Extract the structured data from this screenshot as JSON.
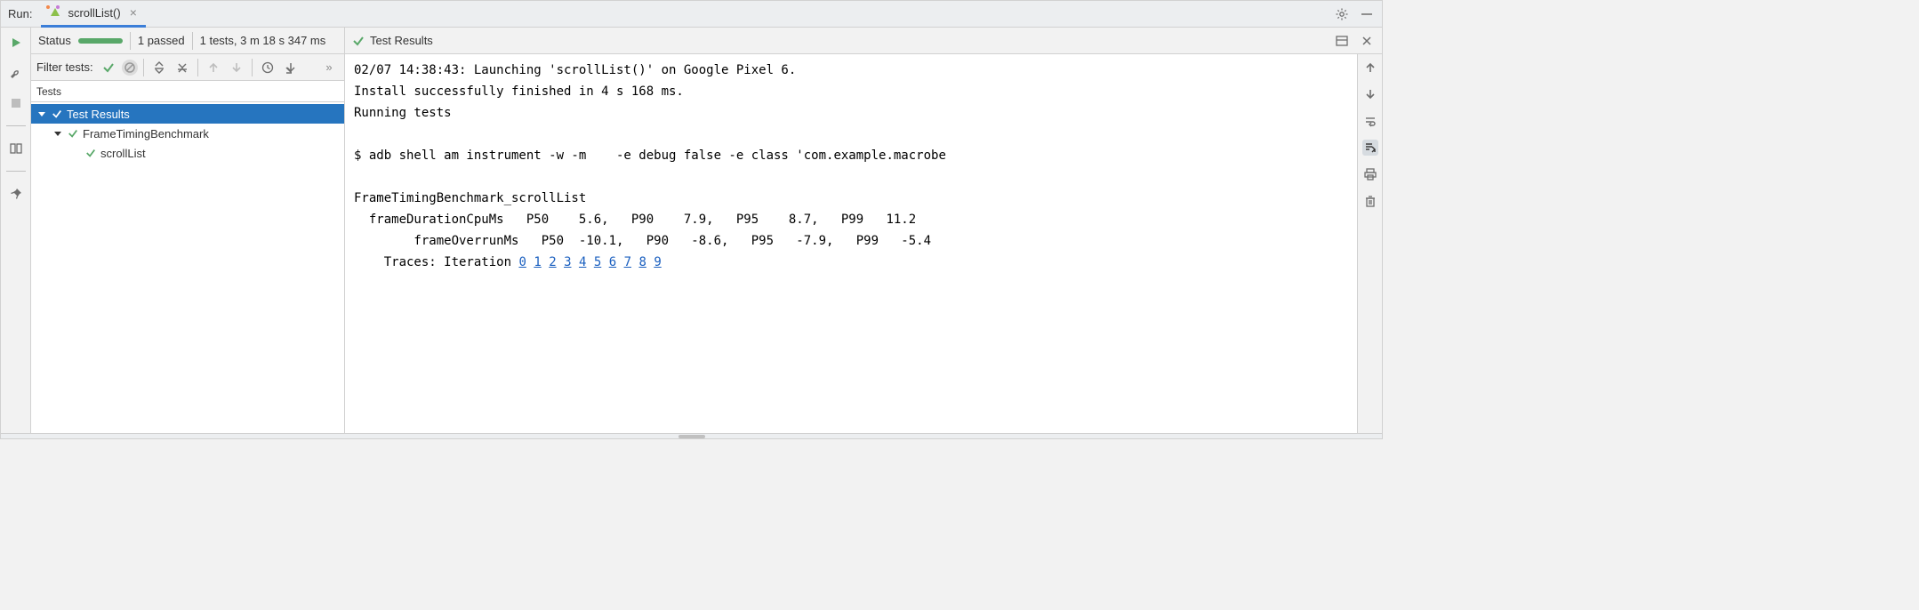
{
  "header": {
    "run_label": "Run:",
    "tab_title": "scrollList()"
  },
  "status": {
    "label": "Status",
    "passed_text": "1 passed",
    "summary": "1 tests, 3 m 18 s 347 ms"
  },
  "filter": {
    "label": "Filter tests:"
  },
  "tree": {
    "header": "Tests",
    "nodes": [
      {
        "label": "Test Results",
        "indent": 0,
        "expanded": true,
        "selected": true
      },
      {
        "label": "FrameTimingBenchmark",
        "indent": 1,
        "expanded": true,
        "selected": false
      },
      {
        "label": "scrollList",
        "indent": 2,
        "expanded": false,
        "selected": false,
        "leaf": true
      }
    ]
  },
  "output": {
    "title": "Test Results",
    "console_lines": [
      "02/07 14:38:43: Launching 'scrollList()' on Google Pixel 6.",
      "Install successfully finished in 4 s 168 ms.",
      "Running tests",
      "",
      "$ adb shell am instrument -w -m    -e debug false -e class 'com.example.macrobe",
      "",
      "FrameTimingBenchmark_scrollList",
      "  frameDurationCpuMs   P50    5.6,   P90    7.9,   P95    8.7,   P99   11.2",
      "        frameOverrunMs   P50  -10.1,   P90   -8.6,   P95   -7.9,   P99   -5.4"
    ],
    "traces_prefix": "    Traces: Iteration ",
    "traces_iterations": [
      "0",
      "1",
      "2",
      "3",
      "4",
      "5",
      "6",
      "7",
      "8",
      "9"
    ]
  },
  "colors": {
    "green": "#59a869",
    "blue_sel": "#2675bf",
    "link": "#1a5fbf",
    "tab_underline": "#3b7ed8"
  }
}
